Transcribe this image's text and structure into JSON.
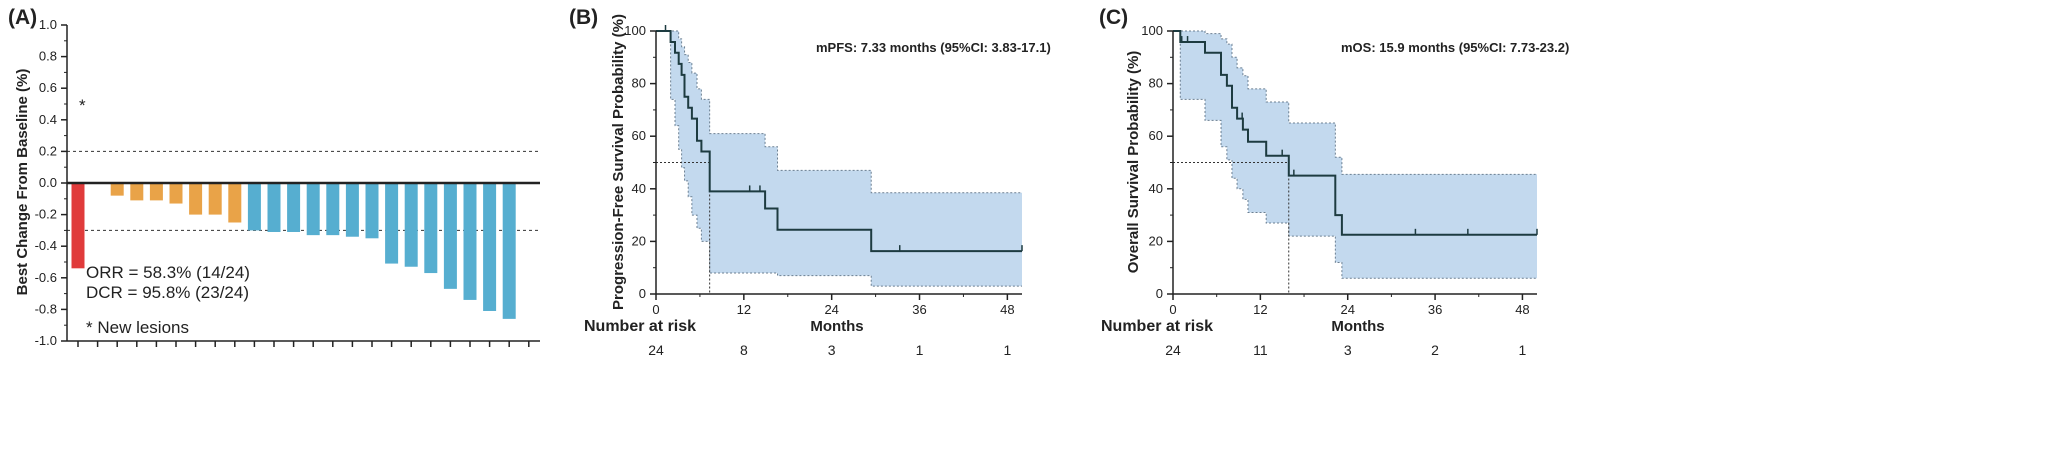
{
  "colors": {
    "red": "#e03b3b",
    "orange": "#e9a348",
    "blue": "#56aed0",
    "band_fill": "#c3d9ee",
    "band_edge": "#6b7f91",
    "curve": "#1d3b40",
    "axis": "#222222"
  },
  "chart_data": [
    {
      "type": "bar",
      "panel_label": "(A)",
      "title": "",
      "xlabel": "",
      "ylabel": "Best Change From Baseline (%)",
      "ylim": [
        -1.0,
        1.0
      ],
      "y_ticks": [
        "1.0",
        "0.8",
        "0.6",
        "0.4",
        "0.2",
        "0.0",
        "-0.2",
        "-0.4",
        "-0.6",
        "-0.8",
        "-1.0"
      ],
      "y_tick_values": [
        1.0,
        0.8,
        0.6,
        0.4,
        0.2,
        0.0,
        -0.2,
        -0.4,
        -0.6,
        -0.8,
        -1.0
      ],
      "reference_lines": [
        0.2,
        -0.3
      ],
      "values": [
        -0.54,
        -0.005,
        -0.08,
        -0.11,
        -0.11,
        -0.13,
        -0.2,
        -0.2,
        -0.25,
        -0.3,
        -0.31,
        -0.31,
        -0.33,
        -0.33,
        -0.34,
        -0.35,
        -0.51,
        -0.53,
        -0.57,
        -0.67,
        -0.74,
        -0.81,
        -0.86
      ],
      "bar_colors": [
        "red",
        "orange",
        "orange",
        "orange",
        "orange",
        "orange",
        "orange",
        "orange",
        "orange",
        "blue",
        "blue",
        "blue",
        "blue",
        "blue",
        "blue",
        "blue",
        "blue",
        "blue",
        "blue",
        "blue",
        "blue",
        "blue",
        "blue"
      ],
      "extra_tick_count": 24,
      "new_lesion_marker": "*",
      "annotations": [
        "ORR = 58.3% (14/24)",
        "DCR = 95.8% (23/24)",
        "* New lesions"
      ]
    },
    {
      "type": "line",
      "panel_label": "(B)",
      "title": "",
      "summary": "mPFS: 7.33 months (95%CI: 3.83-17.1)",
      "xlabel": "Months",
      "ylabel": "Progression-Free Survival Probability (%)",
      "xlim": [
        0,
        50
      ],
      "ylim": [
        0,
        100
      ],
      "x_ticks": [
        0,
        12,
        24,
        36,
        48
      ],
      "x_tick_labels": [
        "0",
        "12",
        "24",
        "36",
        "48"
      ],
      "y_ticks": [
        0,
        20,
        40,
        60,
        80,
        100
      ],
      "y_tick_labels": [
        "0",
        "20",
        "40",
        "60",
        "80",
        "100"
      ],
      "median": 7.33,
      "curve": {
        "times": [
          0,
          2.0,
          2.6,
          3.1,
          3.5,
          3.9,
          4.4,
          4.9,
          5.6,
          6.2,
          7.33,
          14.9,
          16.6,
          29.4,
          50
        ],
        "surv": [
          100,
          95.8,
          91.7,
          87.5,
          83.3,
          75,
          70.8,
          66.7,
          58.3,
          54.2,
          39,
          32.5,
          24.4,
          16.3,
          16.3
        ]
      },
      "ci_lower": {
        "times": [
          0,
          2.0,
          2.6,
          3.1,
          3.5,
          3.9,
          4.4,
          4.9,
          5.6,
          6.2,
          7.33,
          14.9,
          16.6,
          29.4,
          50
        ],
        "values": [
          100,
          74,
          64,
          55,
          48,
          43,
          37,
          30,
          25,
          20,
          8,
          8,
          7,
          3,
          3
        ]
      },
      "ci_upper": {
        "times": [
          0,
          2.0,
          2.6,
          3.1,
          3.5,
          3.9,
          4.4,
          4.9,
          5.6,
          6.2,
          7.33,
          14.9,
          16.6,
          29.4,
          50
        ],
        "values": [
          100,
          100,
          100,
          97,
          94,
          91,
          88,
          84,
          78,
          74,
          61,
          56,
          47,
          38.5,
          38.5
        ]
      },
      "censor_times": [
        1.3,
        12.8,
        14.2,
        33.3,
        50
      ],
      "risk_table": {
        "title": "Number at risk",
        "times": [
          0,
          12,
          24,
          36,
          48
        ],
        "counts": [
          "24",
          "8",
          "3",
          "1",
          "1"
        ]
      }
    },
    {
      "type": "line",
      "panel_label": "(C)",
      "title": "",
      "summary": "mOS: 15.9 months (95%CI: 7.73-23.2)",
      "xlabel": "Months",
      "ylabel": "Overall Survival Probability (%)",
      "xlim": [
        0,
        50
      ],
      "ylim": [
        0,
        100
      ],
      "x_ticks": [
        0,
        12,
        24,
        36,
        48
      ],
      "x_tick_labels": [
        "0",
        "12",
        "24",
        "36",
        "48"
      ],
      "y_ticks": [
        0,
        20,
        40,
        60,
        80,
        100
      ],
      "y_tick_labels": [
        "0",
        "20",
        "40",
        "60",
        "80",
        "100"
      ],
      "median": 15.9,
      "curve": {
        "times": [
          0,
          1.0,
          4.4,
          6.6,
          7.4,
          8.1,
          8.8,
          9.6,
          10.3,
          12.8,
          15.9,
          22.3,
          23.2,
          50
        ],
        "surv": [
          100,
          95.8,
          91.7,
          83.3,
          79.2,
          70.8,
          66.7,
          62.5,
          57.9,
          52.6,
          45,
          30,
          22.5,
          22.5
        ]
      },
      "ci_lower": {
        "times": [
          0,
          1.0,
          4.4,
          6.6,
          7.4,
          8.1,
          8.8,
          9.6,
          10.3,
          12.8,
          15.9,
          22.3,
          23.2,
          50
        ],
        "values": [
          100,
          74,
          66,
          56,
          51,
          44,
          40,
          36,
          31,
          27,
          22,
          12,
          6,
          6
        ]
      },
      "ci_upper": {
        "times": [
          0,
          1.0,
          4.4,
          6.6,
          7.4,
          8.1,
          8.8,
          9.6,
          10.3,
          12.8,
          15.9,
          22.3,
          23.2,
          50
        ],
        "values": [
          100,
          100,
          99,
          97,
          95,
          90,
          86,
          83,
          78,
          73,
          65,
          52,
          45.5,
          45.5
        ]
      },
      "censor_times": [
        1.2,
        2.0,
        9.5,
        12.8,
        15.0,
        16.6,
        33.3,
        40.5,
        50
      ],
      "risk_table": {
        "title": "Number at risk",
        "times": [
          0,
          12,
          24,
          36,
          48
        ],
        "counts": [
          "24",
          "11",
          "3",
          "2",
          "1"
        ]
      }
    }
  ]
}
